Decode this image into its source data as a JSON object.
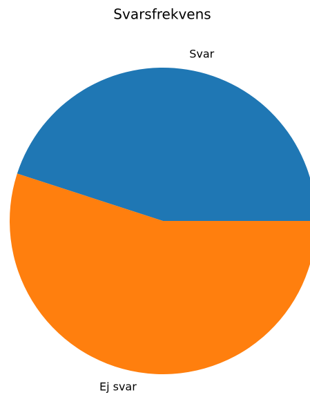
{
  "chart_data": {
    "type": "pie",
    "title": "Svarsfrekvens",
    "categories": [
      "Svar",
      "Ej svar"
    ],
    "values": [
      45,
      55
    ],
    "colors": [
      "#1f77b4",
      "#ff7f0e"
    ],
    "start_angle": 0,
    "counterclockwise": true
  }
}
